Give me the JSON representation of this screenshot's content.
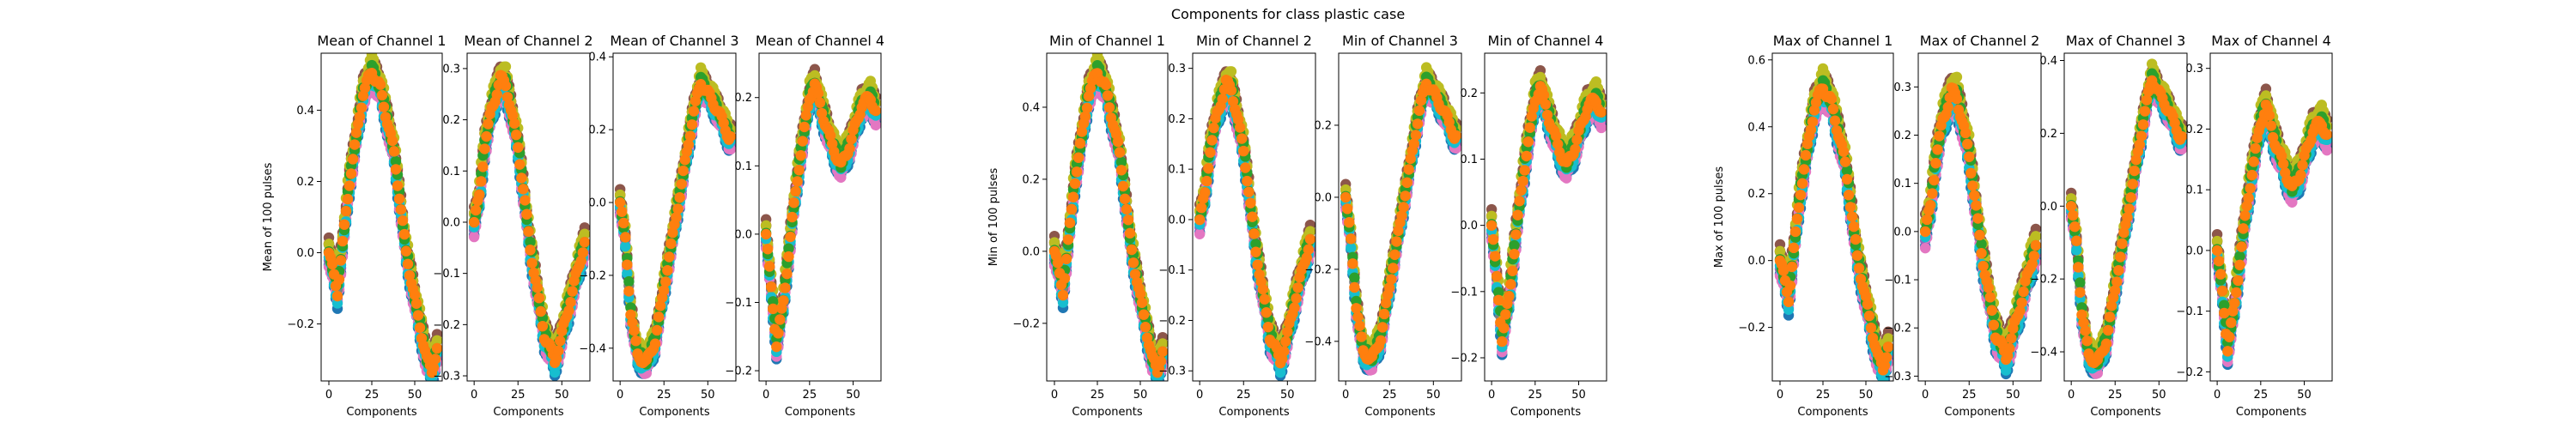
{
  "figure": {
    "suptitle": "Components for class plastic case"
  },
  "series_colors": [
    "#1f77b4",
    "#d62728",
    "#9467bd",
    "#8c564b",
    "#e377c2",
    "#7f7f7f",
    "#bcbd22",
    "#17becf",
    "#2ca02c",
    "#ff7f0e"
  ],
  "chart_data": [
    {
      "type": "scatter",
      "group": "mean",
      "channel": 1,
      "title": "Mean of Channel 1",
      "xlabel": "Components",
      "ylabel": "Mean of 100 pulses",
      "xlim": [
        -4.5,
        66
      ],
      "ylim": [
        -0.36,
        0.56
      ],
      "xticks": [
        {
          "v": 0,
          "label": "0"
        },
        {
          "v": 25,
          "label": "25"
        },
        {
          "v": 50,
          "label": "50"
        }
      ],
      "yticks": [
        {
          "v": -0.2,
          "label": "−0.2"
        },
        {
          "v": 0.0,
          "label": "0.0"
        },
        {
          "v": 0.2,
          "label": "0.2"
        },
        {
          "v": 0.4,
          "label": "0.4"
        }
      ],
      "curve": [
        [
          0,
          0.0
        ],
        [
          5,
          -0.11
        ],
        [
          12,
          0.2
        ],
        [
          20,
          0.45
        ],
        [
          25,
          0.51
        ],
        [
          30,
          0.46
        ],
        [
          38,
          0.28
        ],
        [
          45,
          0.0
        ],
        [
          52,
          -0.18
        ],
        [
          57,
          -0.3
        ],
        [
          60,
          -0.33
        ],
        [
          63,
          -0.27
        ]
      ],
      "spread": 0.035
    },
    {
      "type": "scatter",
      "group": "mean",
      "channel": 2,
      "title": "Mean of Channel 2",
      "xlabel": "Components",
      "ylabel": "",
      "xlim": [
        -4,
        66
      ],
      "ylim": [
        -0.31,
        0.33
      ],
      "xticks": [
        {
          "v": 0,
          "label": "0"
        },
        {
          "v": 25,
          "label": "25"
        },
        {
          "v": 50,
          "label": "50"
        }
      ],
      "yticks": [
        {
          "v": -0.3,
          "label": "−0.3"
        },
        {
          "v": -0.2,
          "label": "−0.2"
        },
        {
          "v": -0.1,
          "label": "−0.1"
        },
        {
          "v": 0.0,
          "label": "0.0"
        },
        {
          "v": 0.1,
          "label": "0.1"
        },
        {
          "v": 0.2,
          "label": "0.2"
        },
        {
          "v": 0.3,
          "label": "0.3"
        }
      ],
      "curve": [
        [
          0,
          0.0
        ],
        [
          3,
          0.05
        ],
        [
          6,
          0.15
        ],
        [
          10,
          0.22
        ],
        [
          15,
          0.28
        ],
        [
          18,
          0.27
        ],
        [
          25,
          0.15
        ],
        [
          32,
          -0.05
        ],
        [
          40,
          -0.22
        ],
        [
          46,
          -0.27
        ],
        [
          50,
          -0.22
        ],
        [
          55,
          -0.15
        ],
        [
          60,
          -0.08
        ],
        [
          63,
          -0.04
        ]
      ],
      "spread": 0.025
    },
    {
      "type": "scatter",
      "group": "mean",
      "channel": 3,
      "title": "Mean of Channel 3",
      "xlabel": "Components",
      "ylabel": "",
      "xlim": [
        -4,
        66
      ],
      "ylim": [
        -0.49,
        0.41
      ],
      "xticks": [
        {
          "v": 0,
          "label": "0"
        },
        {
          "v": 25,
          "label": "25"
        },
        {
          "v": 50,
          "label": "50"
        }
      ],
      "yticks": [
        {
          "v": -0.4,
          "label": "−0.4"
        },
        {
          "v": -0.2,
          "label": "−0.2"
        },
        {
          "v": 0.0,
          "label": "0.0"
        },
        {
          "v": 0.2,
          "label": "0.2"
        },
        {
          "v": 0.4,
          "label": "0.4"
        }
      ],
      "curve": [
        [
          0,
          0.0
        ],
        [
          3,
          -0.1
        ],
        [
          6,
          -0.3
        ],
        [
          10,
          -0.42
        ],
        [
          15,
          -0.44
        ],
        [
          20,
          -0.38
        ],
        [
          28,
          -0.15
        ],
        [
          35,
          0.05
        ],
        [
          42,
          0.25
        ],
        [
          46,
          0.33
        ],
        [
          50,
          0.3
        ],
        [
          56,
          0.25
        ],
        [
          62,
          0.18
        ]
      ],
      "spread": 0.03
    },
    {
      "type": "scatter",
      "group": "mean",
      "channel": 4,
      "title": "Mean of Channel 4",
      "xlabel": "Components",
      "ylabel": "",
      "xlim": [
        -4,
        66
      ],
      "ylim": [
        -0.215,
        0.265
      ],
      "xticks": [
        {
          "v": 0,
          "label": "0"
        },
        {
          "v": 25,
          "label": "25"
        },
        {
          "v": 50,
          "label": "50"
        }
      ],
      "yticks": [
        {
          "v": -0.2,
          "label": "−0.2"
        },
        {
          "v": -0.1,
          "label": "−0.1"
        },
        {
          "v": 0.0,
          "label": "0.0"
        },
        {
          "v": 0.1,
          "label": "0.1"
        },
        {
          "v": 0.2,
          "label": "0.2"
        }
      ],
      "curve": [
        [
          0,
          0.0
        ],
        [
          3,
          -0.08
        ],
        [
          6,
          -0.16
        ],
        [
          10,
          -0.1
        ],
        [
          15,
          0.02
        ],
        [
          20,
          0.12
        ],
        [
          25,
          0.2
        ],
        [
          28,
          0.22
        ],
        [
          32,
          0.18
        ],
        [
          38,
          0.13
        ],
        [
          43,
          0.1
        ],
        [
          48,
          0.13
        ],
        [
          55,
          0.19
        ],
        [
          60,
          0.2
        ],
        [
          63,
          0.18
        ]
      ],
      "spread": 0.018
    },
    {
      "type": "scatter",
      "group": "min",
      "channel": 1,
      "title": "Min of Channel 1",
      "xlabel": "Components",
      "ylabel": "Min of 100 pulses",
      "xlim": [
        -4.5,
        66
      ],
      "ylim": [
        -0.36,
        0.55
      ],
      "xticks": [
        {
          "v": 0,
          "label": "0"
        },
        {
          "v": 25,
          "label": "25"
        },
        {
          "v": 50,
          "label": "50"
        }
      ],
      "yticks": [
        {
          "v": -0.2,
          "label": "−0.2"
        },
        {
          "v": 0.0,
          "label": "0.0"
        },
        {
          "v": 0.2,
          "label": "0.2"
        },
        {
          "v": 0.4,
          "label": "0.4"
        }
      ],
      "curve": [
        [
          0,
          0.0
        ],
        [
          5,
          -0.11
        ],
        [
          12,
          0.2
        ],
        [
          20,
          0.44
        ],
        [
          25,
          0.5
        ],
        [
          30,
          0.45
        ],
        [
          38,
          0.27
        ],
        [
          45,
          0.0
        ],
        [
          52,
          -0.18
        ],
        [
          57,
          -0.3
        ],
        [
          60,
          -0.33
        ],
        [
          63,
          -0.28
        ]
      ],
      "spread": 0.035
    },
    {
      "type": "scatter",
      "group": "min",
      "channel": 2,
      "title": "Min of Channel 2",
      "xlabel": "Components",
      "ylabel": "",
      "xlim": [
        -4,
        66
      ],
      "ylim": [
        -0.32,
        0.33
      ],
      "xticks": [
        {
          "v": 0,
          "label": "0"
        },
        {
          "v": 25,
          "label": "25"
        },
        {
          "v": 50,
          "label": "50"
        }
      ],
      "yticks": [
        {
          "v": -0.3,
          "label": "−0.3"
        },
        {
          "v": -0.2,
          "label": "−0.2"
        },
        {
          "v": -0.1,
          "label": "−0.1"
        },
        {
          "v": 0.0,
          "label": "0.0"
        },
        {
          "v": 0.1,
          "label": "0.1"
        },
        {
          "v": 0.2,
          "label": "0.2"
        },
        {
          "v": 0.3,
          "label": "0.3"
        }
      ],
      "curve": [
        [
          0,
          0.0
        ],
        [
          3,
          0.05
        ],
        [
          6,
          0.14
        ],
        [
          10,
          0.21
        ],
        [
          15,
          0.27
        ],
        [
          18,
          0.26
        ],
        [
          25,
          0.14
        ],
        [
          32,
          -0.06
        ],
        [
          40,
          -0.23
        ],
        [
          46,
          -0.28
        ],
        [
          50,
          -0.23
        ],
        [
          55,
          -0.15
        ],
        [
          60,
          -0.08
        ],
        [
          63,
          -0.04
        ]
      ],
      "spread": 0.025
    },
    {
      "type": "scatter",
      "group": "min",
      "channel": 3,
      "title": "Min of Channel 3",
      "xlabel": "Components",
      "ylabel": "",
      "xlim": [
        -4,
        66
      ],
      "ylim": [
        -0.51,
        0.4
      ],
      "xticks": [
        {
          "v": 0,
          "label": "0"
        },
        {
          "v": 25,
          "label": "25"
        },
        {
          "v": 50,
          "label": "50"
        }
      ],
      "yticks": [
        {
          "v": -0.4,
          "label": "−0.4"
        },
        {
          "v": -0.2,
          "label": "−0.2"
        },
        {
          "v": 0.0,
          "label": "0.0"
        },
        {
          "v": 0.2,
          "label": "0.2"
        }
      ],
      "curve": [
        [
          0,
          0.0
        ],
        [
          3,
          -0.12
        ],
        [
          6,
          -0.3
        ],
        [
          10,
          -0.43
        ],
        [
          15,
          -0.45
        ],
        [
          20,
          -0.39
        ],
        [
          28,
          -0.16
        ],
        [
          35,
          0.04
        ],
        [
          42,
          0.24
        ],
        [
          46,
          0.32
        ],
        [
          50,
          0.29
        ],
        [
          56,
          0.24
        ],
        [
          62,
          0.17
        ]
      ],
      "spread": 0.03
    },
    {
      "type": "scatter",
      "group": "min",
      "channel": 4,
      "title": "Min of Channel 4",
      "xlabel": "Components",
      "ylabel": "",
      "xlim": [
        -4,
        66
      ],
      "ylim": [
        -0.235,
        0.26
      ],
      "xticks": [
        {
          "v": 0,
          "label": "0"
        },
        {
          "v": 25,
          "label": "25"
        },
        {
          "v": 50,
          "label": "50"
        }
      ],
      "yticks": [
        {
          "v": -0.2,
          "label": "−0.2"
        },
        {
          "v": -0.1,
          "label": "−0.1"
        },
        {
          "v": 0.0,
          "label": "0.0"
        },
        {
          "v": 0.1,
          "label": "0.1"
        },
        {
          "v": 0.2,
          "label": "0.2"
        }
      ],
      "curve": [
        [
          0,
          0.0
        ],
        [
          3,
          -0.08
        ],
        [
          6,
          -0.17
        ],
        [
          10,
          -0.11
        ],
        [
          15,
          0.01
        ],
        [
          20,
          0.11
        ],
        [
          25,
          0.19
        ],
        [
          28,
          0.21
        ],
        [
          32,
          0.17
        ],
        [
          38,
          0.12
        ],
        [
          43,
          0.09
        ],
        [
          48,
          0.12
        ],
        [
          55,
          0.18
        ],
        [
          60,
          0.19
        ],
        [
          63,
          0.17
        ]
      ],
      "spread": 0.02
    },
    {
      "type": "scatter",
      "group": "max",
      "channel": 1,
      "title": "Max of Channel 1",
      "xlabel": "Components",
      "ylabel": "Max of 100 pulses",
      "xlim": [
        -4.5,
        66
      ],
      "ylim": [
        -0.36,
        0.62
      ],
      "xticks": [
        {
          "v": 0,
          "label": "0"
        },
        {
          "v": 25,
          "label": "25"
        },
        {
          "v": 50,
          "label": "50"
        }
      ],
      "yticks": [
        {
          "v": -0.2,
          "label": "−0.2"
        },
        {
          "v": 0.0,
          "label": "0.0"
        },
        {
          "v": 0.2,
          "label": "0.2"
        },
        {
          "v": 0.4,
          "label": "0.4"
        },
        {
          "v": 0.6,
          "label": "0.6"
        }
      ],
      "curve": [
        [
          0,
          0.0
        ],
        [
          5,
          -0.11
        ],
        [
          12,
          0.21
        ],
        [
          20,
          0.46
        ],
        [
          25,
          0.52
        ],
        [
          30,
          0.47
        ],
        [
          38,
          0.29
        ],
        [
          45,
          0.01
        ],
        [
          52,
          -0.17
        ],
        [
          57,
          -0.29
        ],
        [
          60,
          -0.32
        ],
        [
          63,
          -0.26
        ]
      ],
      "spread": 0.04
    },
    {
      "type": "scatter",
      "group": "max",
      "channel": 2,
      "title": "Max of Channel 2",
      "xlabel": "Components",
      "ylabel": "",
      "xlim": [
        -4,
        66
      ],
      "ylim": [
        -0.31,
        0.37
      ],
      "xticks": [
        {
          "v": 0,
          "label": "0"
        },
        {
          "v": 25,
          "label": "25"
        },
        {
          "v": 50,
          "label": "50"
        }
      ],
      "yticks": [
        {
          "v": -0.3,
          "label": "−0.3"
        },
        {
          "v": -0.2,
          "label": "−0.2"
        },
        {
          "v": -0.1,
          "label": "−0.1"
        },
        {
          "v": 0.0,
          "label": "0.0"
        },
        {
          "v": 0.1,
          "label": "0.1"
        },
        {
          "v": 0.2,
          "label": "0.2"
        },
        {
          "v": 0.3,
          "label": "0.3"
        }
      ],
      "curve": [
        [
          0,
          0.0
        ],
        [
          3,
          0.05
        ],
        [
          6,
          0.15
        ],
        [
          10,
          0.23
        ],
        [
          15,
          0.29
        ],
        [
          18,
          0.28
        ],
        [
          25,
          0.16
        ],
        [
          32,
          -0.04
        ],
        [
          40,
          -0.21
        ],
        [
          46,
          -0.26
        ],
        [
          50,
          -0.21
        ],
        [
          55,
          -0.14
        ],
        [
          60,
          -0.07
        ],
        [
          63,
          -0.03
        ]
      ],
      "spread": 0.03
    },
    {
      "type": "scatter",
      "group": "max",
      "channel": 3,
      "title": "Max of Channel 3",
      "xlabel": "Components",
      "ylabel": "",
      "xlim": [
        -4,
        66
      ],
      "ylim": [
        -0.48,
        0.42
      ],
      "xticks": [
        {
          "v": 0,
          "label": "0"
        },
        {
          "v": 25,
          "label": "25"
        },
        {
          "v": 50,
          "label": "50"
        }
      ],
      "yticks": [
        {
          "v": -0.4,
          "label": "−0.4"
        },
        {
          "v": -0.2,
          "label": "−0.2"
        },
        {
          "v": 0.0,
          "label": "0.0"
        },
        {
          "v": 0.2,
          "label": "0.2"
        },
        {
          "v": 0.4,
          "label": "0.4"
        }
      ],
      "curve": [
        [
          0,
          0.0
        ],
        [
          3,
          -0.1
        ],
        [
          6,
          -0.29
        ],
        [
          10,
          -0.41
        ],
        [
          15,
          -0.43
        ],
        [
          20,
          -0.37
        ],
        [
          28,
          -0.14
        ],
        [
          35,
          0.06
        ],
        [
          42,
          0.26
        ],
        [
          46,
          0.35
        ],
        [
          50,
          0.31
        ],
        [
          56,
          0.26
        ],
        [
          62,
          0.19
        ]
      ],
      "spread": 0.03
    },
    {
      "type": "scatter",
      "group": "max",
      "channel": 4,
      "title": "Max of Channel 4",
      "xlabel": "Components",
      "ylabel": "",
      "xlim": [
        -4,
        66
      ],
      "ylim": [
        -0.215,
        0.325
      ],
      "xticks": [
        {
          "v": 0,
          "label": "0"
        },
        {
          "v": 25,
          "label": "25"
        },
        {
          "v": 50,
          "label": "50"
        }
      ],
      "yticks": [
        {
          "v": -0.2,
          "label": "−0.2"
        },
        {
          "v": -0.1,
          "label": "−0.1"
        },
        {
          "v": 0.0,
          "label": "0.0"
        },
        {
          "v": 0.1,
          "label": "0.1"
        },
        {
          "v": 0.2,
          "label": "0.2"
        },
        {
          "v": 0.3,
          "label": "0.3"
        }
      ],
      "curve": [
        [
          0,
          0.0
        ],
        [
          3,
          -0.07
        ],
        [
          6,
          -0.16
        ],
        [
          10,
          -0.09
        ],
        [
          15,
          0.03
        ],
        [
          20,
          0.13
        ],
        [
          25,
          0.21
        ],
        [
          28,
          0.24
        ],
        [
          32,
          0.19
        ],
        [
          38,
          0.14
        ],
        [
          43,
          0.1
        ],
        [
          48,
          0.13
        ],
        [
          55,
          0.2
        ],
        [
          60,
          0.21
        ],
        [
          63,
          0.19
        ]
      ],
      "spread": 0.022
    }
  ]
}
